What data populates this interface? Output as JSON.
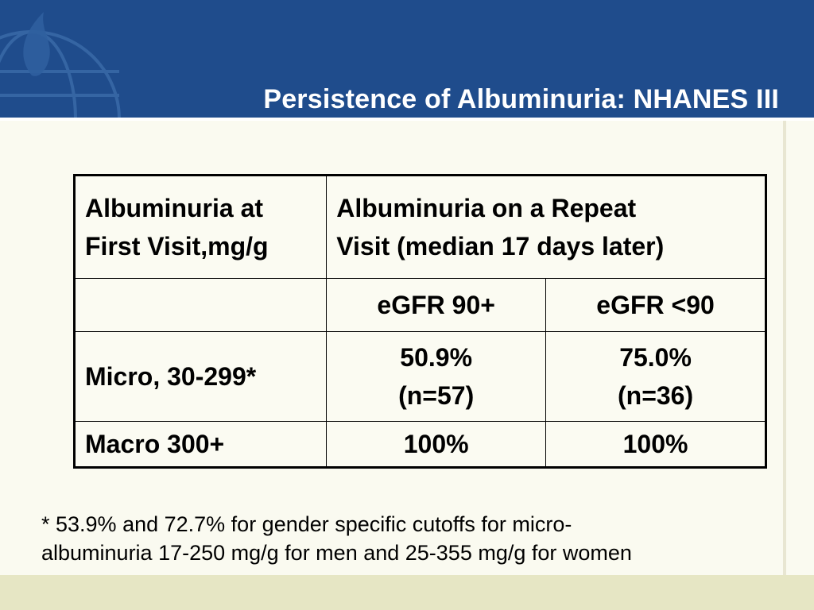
{
  "slide": {
    "title": "Persistence of Albuminuria: NHANES III"
  },
  "table": {
    "header": {
      "first_visit_line1": "Albuminuria at",
      "first_visit_line2": "First Visit,mg/g",
      "repeat_line1": "Albuminuria on a Repeat",
      "repeat_line2": "Visit (median 17 days later)"
    },
    "subheader": {
      "egfr_high": "eGFR 90+",
      "egfr_low": "eGFR <90"
    },
    "rows": [
      {
        "label": "Micro, 30-299*",
        "egfr_high_value": "50.9%",
        "egfr_high_n": "(n=57)",
        "egfr_low_value": "75.0%",
        "egfr_low_n": "(n=36)"
      },
      {
        "label": "Macro 300+",
        "egfr_high_value": "100%",
        "egfr_low_value": "100%"
      }
    ]
  },
  "footnote": {
    "line1": "* 53.9% and 72.7% for gender specific cutoffs for micro-",
    "line2": "albuminuria 17-250 mg/g for men and 25-355 mg/g for women"
  },
  "colors": {
    "header_blue": "#1f4c8c",
    "background": "#fafaf0",
    "footer_band": "#e6e6c4"
  },
  "icons": {
    "logo": "globe-flame-logo-icon"
  }
}
